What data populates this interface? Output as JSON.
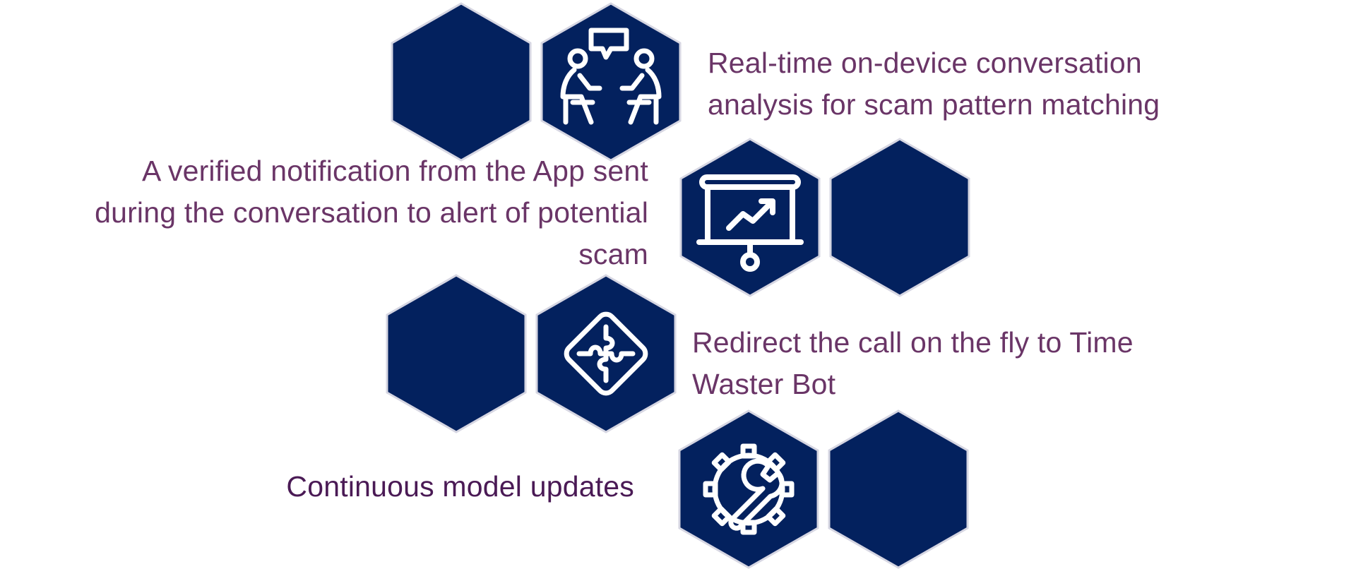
{
  "colors": {
    "hex_fill": "#03215e",
    "hex_stroke": "#d6d6e2",
    "icon_stroke": "#ffffff",
    "text_primary": "#6a3567",
    "text_dark": "#4a1a55"
  },
  "items": [
    {
      "text": "Real-time on-device conversation analysis for scam pattern matching",
      "icon": "conversation-icon"
    },
    {
      "text": "A verified notification from the App sent during the conversation to alert of potential scam",
      "icon": "presentation-chart-icon"
    },
    {
      "text": "Redirect the call on the fly to Time Waster Bot",
      "icon": "puzzle-icon"
    },
    {
      "text": "Continuous model updates",
      "icon": "gear-wrench-icon"
    }
  ]
}
